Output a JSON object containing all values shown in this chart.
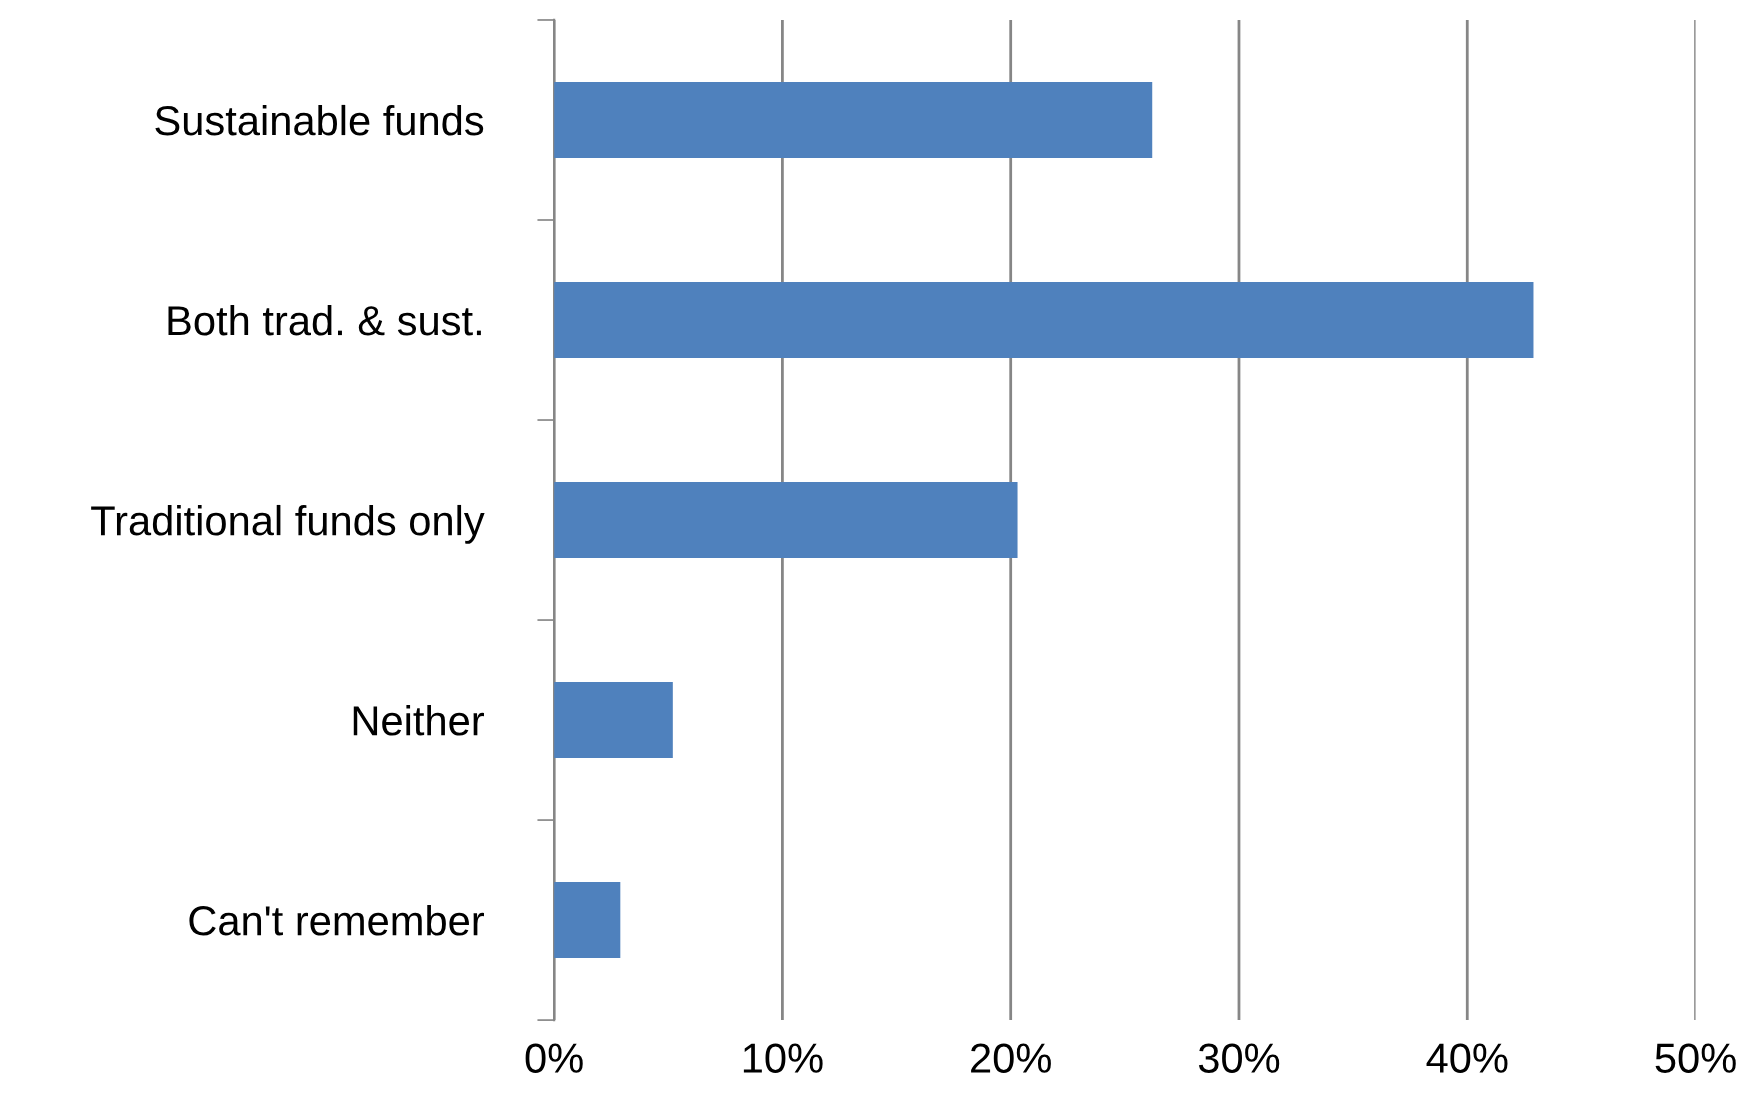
{
  "chart_data": {
    "type": "bar",
    "orientation": "horizontal",
    "categories": [
      "Sustainable funds",
      "Both trad. & sust.",
      "Traditional funds only",
      "Neither",
      "Can't remember"
    ],
    "values": [
      26.2,
      42.9,
      20.3,
      5.2,
      2.9
    ],
    "color": "#4f81bd",
    "xlim": [
      0,
      50
    ],
    "xticks": [
      {
        "value": 0,
        "label": "0%"
      },
      {
        "value": 10,
        "label": "10%"
      },
      {
        "value": 20,
        "label": "20%"
      },
      {
        "value": 30,
        "label": "30%"
      },
      {
        "value": 40,
        "label": "40%"
      },
      {
        "value": 50,
        "label": "50%"
      }
    ],
    "grid": "x",
    "legend": false
  }
}
